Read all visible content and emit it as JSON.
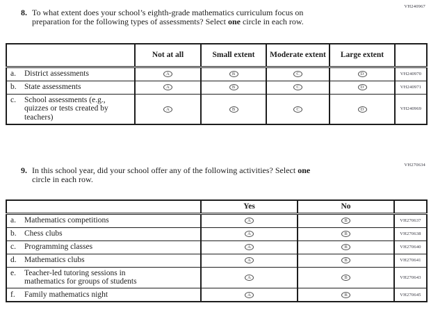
{
  "form": {
    "q8": {
      "number": "8.",
      "code": "VH240967",
      "line1": "To what extent does your school’s eighth-grade mathematics curriculum focus on",
      "line2_pre": "preparation for the following types of assessments? Select ",
      "line2_bold": "one",
      "line2_post": " circle in each row.",
      "table": {
        "headers": [
          "",
          "Not at all",
          "Small extent",
          "Moderate extent",
          "Large extent",
          ""
        ],
        "option_letters": [
          "A",
          "B",
          "C",
          "D"
        ],
        "rows": [
          {
            "letter": "a.",
            "label_lines": [
              "District assessments"
            ],
            "code": "VH240970"
          },
          {
            "letter": "b.",
            "label_lines": [
              "State assessments"
            ],
            "code": "VH240971"
          },
          {
            "letter": "c.",
            "label_lines": [
              "School assessments (e.g.,",
              "quizzes or tests created by",
              "teachers)"
            ],
            "code": "VH240969"
          }
        ]
      }
    },
    "q9": {
      "number": "9.",
      "code": "VH270634",
      "line1_pre": "In this school year, did your school offer any of the following activities? Select ",
      "line1_bold": "one",
      "line2": "circle in each row.",
      "table": {
        "headers": [
          "",
          "Yes",
          "No",
          ""
        ],
        "option_letters": [
          "A",
          "B"
        ],
        "rows": [
          {
            "letter": "a.",
            "label_lines": [
              "Mathematics competitions"
            ],
            "code": "VH270637"
          },
          {
            "letter": "b.",
            "label_lines": [
              "Chess clubs"
            ],
            "code": "VH270638"
          },
          {
            "letter": "c.",
            "label_lines": [
              "Programming classes"
            ],
            "code": "VH270640"
          },
          {
            "letter": "d.",
            "label_lines": [
              "Mathematics clubs"
            ],
            "code": "VH270641"
          },
          {
            "letter": "e.",
            "label_lines": [
              "Teacher-led tutoring sessions in",
              "mathematics for groups of students"
            ],
            "code": "VH270643"
          },
          {
            "letter": "f.",
            "label_lines": [
              "Family mathematics night"
            ],
            "code": "VH270645"
          }
        ]
      }
    }
  }
}
